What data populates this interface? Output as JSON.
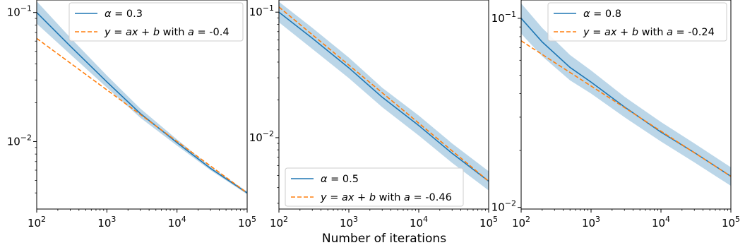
{
  "figure": {
    "xlabel": "Number of iterations"
  },
  "chart_data": [
    {
      "type": "line",
      "xscale": "log",
      "yscale": "log",
      "xlim": [
        100,
        100000
      ],
      "ylim": [
        0.003,
        0.125
      ],
      "grid": false,
      "legend_loc": "upper-right",
      "x_ticks": [
        {
          "value": 100,
          "base": "10",
          "exp": "2"
        },
        {
          "value": 1000,
          "base": "10",
          "exp": "3"
        },
        {
          "value": 10000,
          "base": "10",
          "exp": "4"
        },
        {
          "value": 100000,
          "base": "10",
          "exp": "5"
        }
      ],
      "y_ticks": [
        {
          "value": 0.1,
          "base": "10",
          "exp": "−1"
        },
        {
          "value": 0.01,
          "base": "10",
          "exp": "−2"
        }
      ],
      "series": [
        {
          "name_symbol": "α",
          "name_value": "0.3",
          "style": "solid",
          "color": "#1f77b4",
          "x": [
            100,
            300,
            1000,
            3000,
            10000,
            30000,
            100000
          ],
          "y": [
            0.1,
            0.055,
            0.029,
            0.0165,
            0.0098,
            0.0062,
            0.004
          ],
          "band_lower": [
            0.082,
            0.0475,
            0.0262,
            0.0153,
            0.0093,
            0.006,
            0.0039
          ],
          "band_upper": [
            0.122,
            0.064,
            0.0325,
            0.018,
            0.0104,
            0.0064,
            0.0041
          ]
        },
        {
          "name_prefix": "y = ax + b with a = ",
          "name_value": "-0.4",
          "style": "dashed",
          "color": "#ff7f0e",
          "x": [
            100,
            100000
          ],
          "y": [
            0.063,
            0.004
          ]
        }
      ]
    },
    {
      "type": "line",
      "xscale": "log",
      "yscale": "log",
      "xlim": [
        100,
        100000
      ],
      "ylim": [
        0.0027,
        0.125
      ],
      "grid": false,
      "legend_loc": "lower-right",
      "x_ticks": [
        {
          "value": 100,
          "base": "10",
          "exp": "2"
        },
        {
          "value": 1000,
          "base": "10",
          "exp": "3"
        },
        {
          "value": 10000,
          "base": "10",
          "exp": "4"
        },
        {
          "value": 100000,
          "base": "10",
          "exp": "5"
        }
      ],
      "y_ticks": [
        {
          "value": 0.1,
          "base": "10",
          "exp": "−1"
        },
        {
          "value": 0.01,
          "base": "10",
          "exp": "−2"
        }
      ],
      "series": [
        {
          "name_symbol": "α",
          "name_value": "0.5",
          "style": "solid",
          "color": "#1f77b4",
          "x": [
            100,
            300,
            1000,
            3000,
            10000,
            30000,
            100000
          ],
          "y": [
            0.1,
            0.062,
            0.036,
            0.021,
            0.0125,
            0.0075,
            0.0045
          ],
          "band_lower": [
            0.083,
            0.051,
            0.0298,
            0.0175,
            0.0104,
            0.0063,
            0.0038
          ],
          "band_upper": [
            0.121,
            0.075,
            0.0435,
            0.025,
            0.015,
            0.009,
            0.0054
          ]
        },
        {
          "name_prefix": "y = ax + b with a = ",
          "name_value": "-0.46",
          "style": "dashed",
          "color": "#ff7f0e",
          "x": [
            100,
            100000
          ],
          "y": [
            0.11,
            0.0045
          ]
        }
      ]
    },
    {
      "type": "line",
      "xscale": "log",
      "yscale": "log",
      "xlim": [
        100,
        100000
      ],
      "ylim": [
        0.0098,
        0.125
      ],
      "grid": false,
      "legend_loc": "upper-right",
      "x_ticks": [
        {
          "value": 100,
          "base": "10",
          "exp": "2"
        },
        {
          "value": 1000,
          "base": "10",
          "exp": "3"
        },
        {
          "value": 10000,
          "base": "10",
          "exp": "4"
        },
        {
          "value": 100000,
          "base": "10",
          "exp": "5"
        }
      ],
      "y_ticks": [
        {
          "value": 0.1,
          "base": "10",
          "exp": "−1"
        },
        {
          "value": 0.01,
          "base": "10",
          "exp": "−2"
        }
      ],
      "series": [
        {
          "name_symbol": "α",
          "name_value": "0.8",
          "style": "solid",
          "color": "#1f77b4",
          "x": [
            100,
            200,
            500,
            1000,
            3000,
            10000,
            30000,
            100000
          ],
          "y": [
            0.1,
            0.075,
            0.055,
            0.046,
            0.034,
            0.025,
            0.0195,
            0.0146
          ],
          "band_lower": [
            0.083,
            0.063,
            0.047,
            0.04,
            0.03,
            0.0223,
            0.0173,
            0.013
          ],
          "band_upper": [
            0.12,
            0.089,
            0.064,
            0.053,
            0.0385,
            0.0283,
            0.0218,
            0.0163
          ]
        },
        {
          "name_prefix": "y = ax + b with a = ",
          "name_value": "-0.24",
          "style": "dashed",
          "color": "#ff7f0e",
          "x": [
            100,
            100000
          ],
          "y": [
            0.076,
            0.0146
          ]
        }
      ]
    }
  ]
}
